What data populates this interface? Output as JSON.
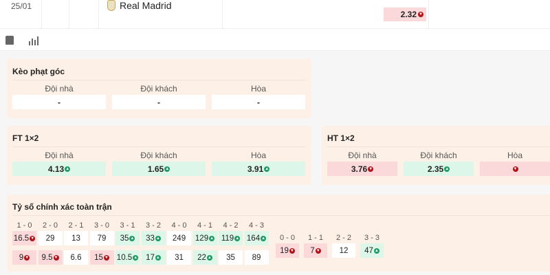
{
  "match": {
    "date": "25/01",
    "away_team": "Real Madrid",
    "odd": {
      "value": "2.32",
      "dir": "down"
    }
  },
  "icons": [
    "shirt-icon",
    "stats-icon"
  ],
  "corner": {
    "title": "Kèo phạt góc",
    "labels": [
      "Đội nhà",
      "Đội khách",
      "Hòa"
    ],
    "values": [
      {
        "v": "-",
        "d": ""
      },
      {
        "v": "-",
        "d": ""
      },
      {
        "v": "-",
        "d": ""
      }
    ]
  },
  "ft": {
    "title": "FT 1×2",
    "labels": [
      "Đội nhà",
      "Đội khách",
      "Hòa"
    ],
    "values": [
      {
        "v": "4.13",
        "d": "up"
      },
      {
        "v": "1.65",
        "d": "up"
      },
      {
        "v": "3.91",
        "d": "up"
      }
    ]
  },
  "ht": {
    "title": "HT 1×2",
    "labels": [
      "Đội nhà",
      "Đội khách",
      "Hòa"
    ],
    "values": [
      {
        "v": "3.76",
        "d": "down"
      },
      {
        "v": "2.35",
        "d": "up"
      },
      {
        "v": "",
        "d": "down"
      }
    ]
  },
  "exact": {
    "title": "Tỷ số chính xác toàn trận",
    "columns": [
      {
        "s": "1 - 0",
        "a": {
          "v": "16.5",
          "d": "down"
        },
        "b": {
          "v": "9",
          "d": "down"
        }
      },
      {
        "s": "2 - 0",
        "a": {
          "v": "29",
          "d": ""
        },
        "b": {
          "v": "9.5",
          "d": "down"
        }
      },
      {
        "s": "2 - 1",
        "a": {
          "v": "13",
          "d": ""
        },
        "b": {
          "v": "6.6",
          "d": ""
        }
      },
      {
        "s": "3 - 0",
        "a": {
          "v": "79",
          "d": ""
        },
        "b": {
          "v": "15",
          "d": "down"
        }
      },
      {
        "s": "3 - 1",
        "a": {
          "v": "35",
          "d": "up"
        },
        "b": {
          "v": "10.5",
          "d": "up"
        }
      },
      {
        "s": "3 - 2",
        "a": {
          "v": "33",
          "d": "up"
        },
        "b": {
          "v": "17",
          "d": "up"
        }
      },
      {
        "s": "4 - 0",
        "a": {
          "v": "249",
          "d": ""
        },
        "b": {
          "v": "31",
          "d": ""
        }
      },
      {
        "s": "4 - 1",
        "a": {
          "v": "129",
          "d": "up"
        },
        "b": {
          "v": "22",
          "d": "up"
        }
      },
      {
        "s": "4 - 2",
        "a": {
          "v": "119",
          "d": "up"
        },
        "b": {
          "v": "35",
          "d": ""
        }
      },
      {
        "s": "4 - 3",
        "a": {
          "v": "164",
          "d": "up"
        },
        "b": {
          "v": "89",
          "d": ""
        }
      }
    ],
    "draws": [
      {
        "s": "0 - 0",
        "a": {
          "v": "19",
          "d": "down"
        }
      },
      {
        "s": "1 - 1",
        "a": {
          "v": "7",
          "d": "down"
        }
      },
      {
        "s": "2 - 2",
        "a": {
          "v": "12",
          "d": ""
        }
      },
      {
        "s": "3 - 3",
        "a": {
          "v": "47",
          "d": "up"
        }
      }
    ]
  },
  "colors": {
    "up_bg": "#dcf7ea",
    "down_bg": "#fbd9da",
    "up_icon": "#1f9a63",
    "down_icon": "#b3131b",
    "panel": "#fdf1e7"
  }
}
